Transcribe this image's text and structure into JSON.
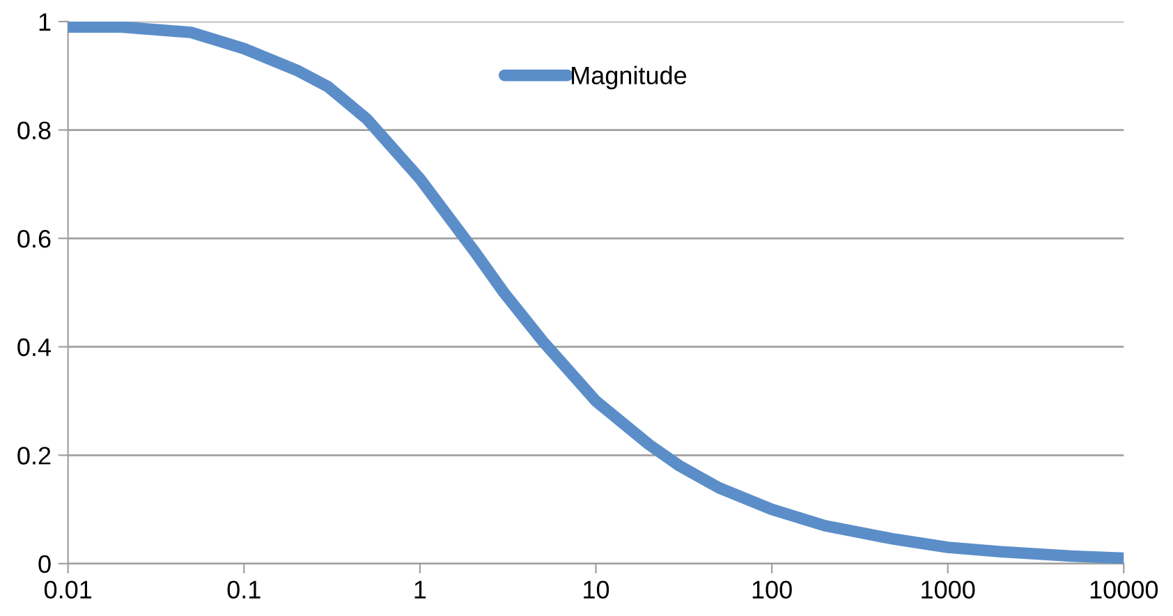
{
  "chart_data": {
    "type": "line",
    "log": "x",
    "grid": "y",
    "legend": "top",
    "marker": "none",
    "line_style": "solid",
    "xlim": [
      0.01,
      10000
    ],
    "xticks": [
      0.01,
      0.1,
      1,
      10,
      100,
      1000,
      10000
    ],
    "ylim": [
      0,
      1
    ],
    "yticks": [
      0,
      0.2,
      0.4,
      0.6,
      0.8,
      1
    ],
    "x": [
      0.01,
      0.02,
      0.05,
      0.1,
      0.2,
      0.3,
      0.5,
      1,
      2,
      3,
      5,
      10,
      20,
      30,
      50,
      100,
      200,
      500,
      1000,
      2000,
      5000,
      10000
    ],
    "series": [
      {
        "name": "Magnitude",
        "color": "#5b8ec9",
        "values": [
          0.99,
          0.99,
          0.98,
          0.95,
          0.91,
          0.88,
          0.82,
          0.71,
          0.58,
          0.5,
          0.41,
          0.3,
          0.22,
          0.18,
          0.14,
          0.1,
          0.07,
          0.045,
          0.03,
          0.022,
          0.014,
          0.01
        ]
      }
    ]
  }
}
